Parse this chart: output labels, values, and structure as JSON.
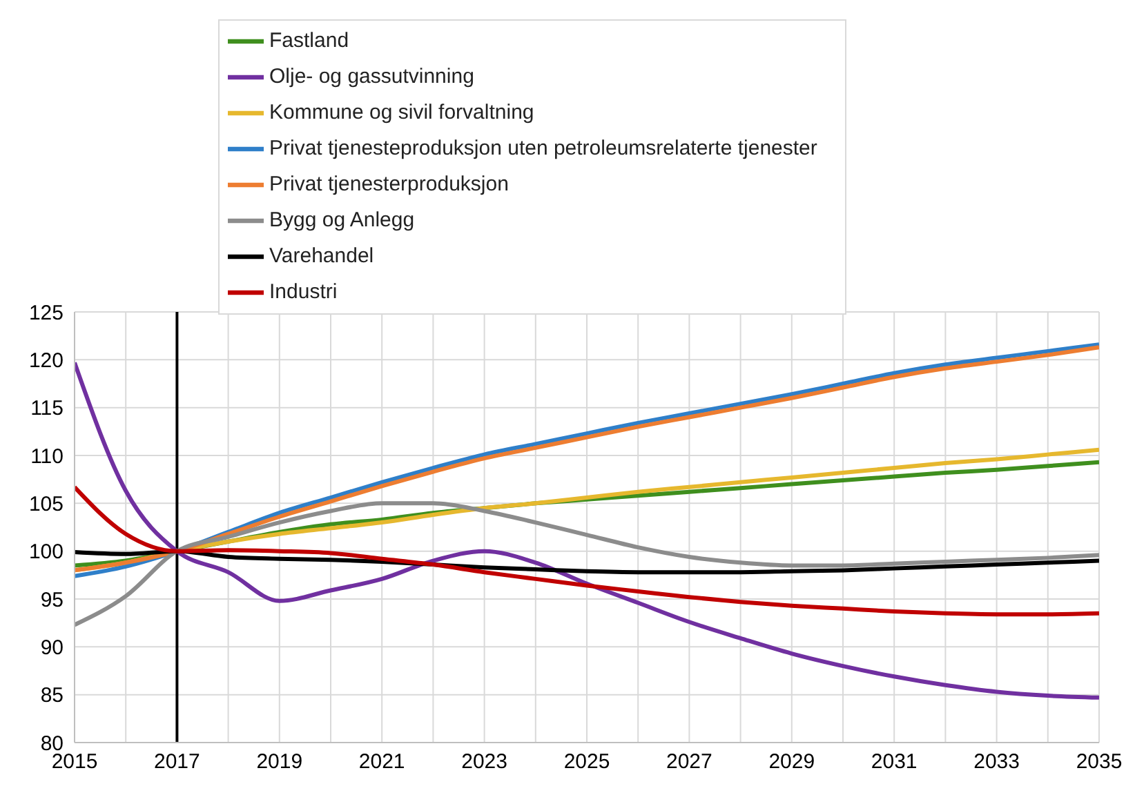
{
  "chart_data": {
    "type": "line",
    "x": [
      2015,
      2016,
      2017,
      2018,
      2019,
      2020,
      2021,
      2022,
      2023,
      2024,
      2025,
      2026,
      2027,
      2028,
      2029,
      2030,
      2031,
      2032,
      2033,
      2034,
      2035
    ],
    "series": [
      {
        "name": "Fastland",
        "color": "#3f8f1e",
        "values": [
          98.5,
          99,
          100,
          101,
          102,
          102.8,
          103.3,
          104,
          104.5,
          105,
          105.4,
          105.8,
          106.2,
          106.6,
          107,
          107.4,
          107.8,
          108.2,
          108.5,
          108.9,
          109.3
        ]
      },
      {
        "name": "Olje- og gassutvinning",
        "color": "#7030a0",
        "values": [
          119.7,
          106.3,
          100,
          97.8,
          94.8,
          95.9,
          97.1,
          99,
          100,
          98.8,
          96.6,
          94.6,
          92.6,
          90.9,
          89.3,
          88,
          86.9,
          86,
          85.3,
          84.9,
          84.7
        ]
      },
      {
        "name": "Kommune og sivil forvaltning",
        "color": "#e6b82e",
        "values": [
          98,
          98.8,
          100,
          101,
          101.8,
          102.4,
          103,
          103.8,
          104.5,
          105,
          105.6,
          106.2,
          106.7,
          107.2,
          107.7,
          108.2,
          108.7,
          109.2,
          109.6,
          110.1,
          110.6
        ]
      },
      {
        "name": "Privat tjenesteproduksjon uten petroleumsrelaterte tjenester",
        "color": "#2f7fc9",
        "values": [
          97.4,
          98.4,
          100,
          102,
          104,
          105.6,
          107.2,
          108.7,
          110.1,
          111.2,
          112.3,
          113.4,
          114.4,
          115.4,
          116.4,
          117.5,
          118.6,
          119.5,
          120.2,
          120.9,
          121.6
        ]
      },
      {
        "name": "Privat tjenesterproduksjon",
        "color": "#ed7d31",
        "values": [
          98,
          98.8,
          100,
          101.8,
          103.6,
          105.2,
          106.8,
          108.3,
          109.7,
          110.8,
          111.9,
          113,
          114,
          115,
          116,
          117.1,
          118.2,
          119.1,
          119.8,
          120.5,
          121.3
        ]
      },
      {
        "name": "Bygg og Anlegg",
        "color": "#8c8c8c",
        "values": [
          92.3,
          95.3,
          100,
          101.5,
          103,
          104.2,
          105,
          105,
          104.2,
          103,
          101.7,
          100.4,
          99.4,
          98.8,
          98.5,
          98.5,
          98.7,
          98.9,
          99.1,
          99.3,
          99.6
        ]
      },
      {
        "name": "Varehandel",
        "color": "#000000",
        "values": [
          99.9,
          99.7,
          100,
          99.4,
          99.2,
          99.1,
          98.9,
          98.6,
          98.3,
          98.1,
          97.9,
          97.8,
          97.8,
          97.8,
          97.9,
          98,
          98.2,
          98.4,
          98.6,
          98.8,
          99
        ]
      },
      {
        "name": "Industri",
        "color": "#c00000",
        "values": [
          106.7,
          101.8,
          100,
          100.1,
          100,
          99.8,
          99.2,
          98.6,
          97.8,
          97.1,
          96.4,
          95.8,
          95.2,
          94.7,
          94.3,
          94,
          93.7,
          93.5,
          93.4,
          93.4,
          93.5
        ]
      }
    ],
    "xlim": [
      2015,
      2035
    ],
    "xticks": [
      2015,
      {
        "value": 2016,
        "label": null
      },
      2017,
      {
        "value": 2018,
        "label": null
      },
      2019,
      {
        "value": 2020,
        "label": null
      },
      2021,
      {
        "value": 2022,
        "label": null
      },
      2023,
      {
        "value": 2024,
        "label": null
      },
      2025,
      {
        "value": 2026,
        "label": null
      },
      2027,
      {
        "value": 2028,
        "label": null
      },
      2029,
      {
        "value": 2030,
        "label": null
      },
      2031,
      {
        "value": 2032,
        "label": null
      },
      2033,
      {
        "value": 2034,
        "label": null
      },
      2035
    ],
    "ylim": [
      80,
      125
    ],
    "yticks": [
      80,
      85,
      90,
      95,
      100,
      105,
      110,
      115,
      120,
      125
    ],
    "grid": true,
    "legend": "top",
    "marker": "none",
    "line_style": "solid",
    "ref_lines": [
      {
        "axis": "x",
        "value": 2017,
        "color": "#000000"
      }
    ]
  }
}
